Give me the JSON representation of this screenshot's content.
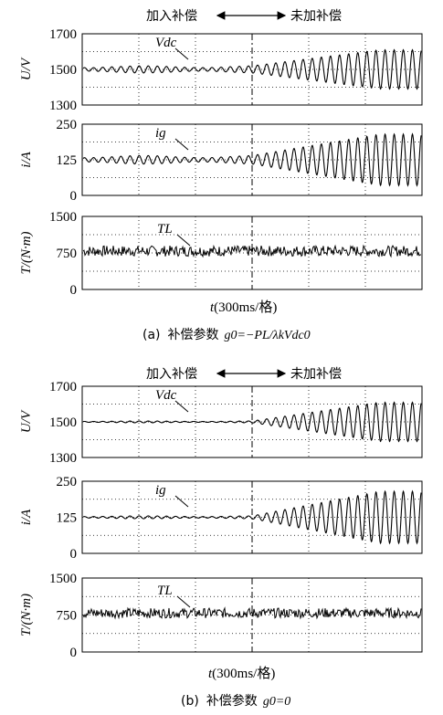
{
  "figure": {
    "panels": [
      {
        "caption_prefix": "(a)",
        "caption_cn": "补偿参数",
        "caption_formula": "g0=−PL/λkVdc0",
        "top_annotation_left": "加入补偿",
        "top_annotation_right": "未加补偿",
        "xlabel_var": "t",
        "xlabel_unit": "(300ms/格)"
      },
      {
        "caption_prefix": "(b)",
        "caption_cn": "补偿参数",
        "caption_formula": "g0=0",
        "top_annotation_left": "加入补偿",
        "top_annotation_right": "未加补偿",
        "xlabel_var": "t",
        "xlabel_unit": "(300ms/格)"
      }
    ]
  },
  "chart_data": [
    {
      "type": "line",
      "figure": "a",
      "title": "Vdc",
      "ylabel": "U/V",
      "ylim": [
        1300,
        1700
      ],
      "yticks": [
        1300,
        1500,
        1700
      ],
      "x_grid_divisions": 6,
      "compensation_switch_at_division": 3,
      "series": [
        {
          "name": "Vdc",
          "color": "#000000",
          "mean": 1500,
          "oscillation_before_switch": 20,
          "oscillation_after_switch_max": 110
        }
      ],
      "grid": true
    },
    {
      "type": "line",
      "figure": "a",
      "title": "ig",
      "ylabel": "i/A",
      "ylim": [
        0,
        250
      ],
      "yticks": [
        0,
        125,
        250
      ],
      "x_grid_divisions": 6,
      "compensation_switch_at_division": 3,
      "series": [
        {
          "name": "ig",
          "color": "#000000",
          "mean": 125,
          "oscillation_before_switch": 15,
          "oscillation_after_switch_max": 90
        }
      ],
      "grid": true
    },
    {
      "type": "line",
      "figure": "a",
      "title": "TL",
      "ylabel": "T/(N·m)",
      "ylim": [
        0,
        1500
      ],
      "yticks": [
        0,
        750,
        1500
      ],
      "x_grid_divisions": 6,
      "series": [
        {
          "name": "TL",
          "color": "#000000",
          "mean": 790,
          "noise_amplitude": 110
        }
      ],
      "grid": true
    },
    {
      "type": "line",
      "figure": "b",
      "title": "Vdc",
      "ylabel": "U/V",
      "ylim": [
        1300,
        1700
      ],
      "yticks": [
        1300,
        1500,
        1700
      ],
      "x_grid_divisions": 6,
      "compensation_switch_at_division": 3,
      "series": [
        {
          "name": "Vdc",
          "color": "#000000",
          "mean": 1500,
          "oscillation_before_switch": 5,
          "oscillation_after_switch_max": 110
        }
      ],
      "grid": true
    },
    {
      "type": "line",
      "figure": "b",
      "title": "ig",
      "ylabel": "i/A",
      "ylim": [
        0,
        250
      ],
      "yticks": [
        0,
        125,
        250
      ],
      "x_grid_divisions": 6,
      "compensation_switch_at_division": 3,
      "series": [
        {
          "name": "ig",
          "color": "#000000",
          "mean": 125,
          "oscillation_before_switch": 5,
          "oscillation_after_switch_max": 90
        }
      ],
      "grid": true
    },
    {
      "type": "line",
      "figure": "b",
      "title": "TL",
      "ylabel": "T/(N·m)",
      "ylim": [
        0,
        1500
      ],
      "yticks": [
        0,
        750,
        1500
      ],
      "x_grid_divisions": 6,
      "series": [
        {
          "name": "TL",
          "color": "#000000",
          "mean": 790,
          "noise_amplitude": 100
        }
      ],
      "grid": true
    }
  ]
}
